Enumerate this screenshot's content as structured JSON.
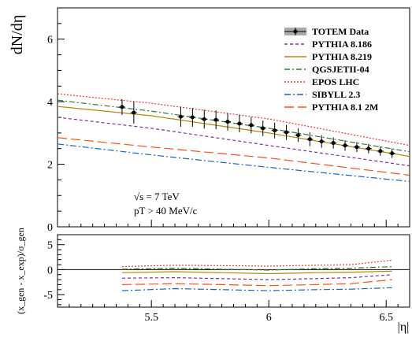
{
  "chart_data": {
    "type": "line",
    "x_range": [
      5.1,
      6.6
    ],
    "x_ticks": [
      "5.5",
      "6",
      "6.5"
    ],
    "xlabel": "|η|",
    "top_panel": {
      "ylabel": "dN/dη",
      "ylim": [
        0,
        7
      ],
      "y_ticks": [
        "0",
        "2",
        "4",
        "6"
      ],
      "annotations": [
        "√s = 7 TeV",
        "pT > 40 MeV/c"
      ],
      "legend_position": "top-right",
      "data_series": {
        "name": "TOTEM Data",
        "points": [
          {
            "x": 5.375,
            "y": 3.83,
            "err": 0.25
          },
          {
            "x": 5.425,
            "y": 3.65,
            "err": 0.35
          },
          {
            "x": 5.625,
            "y": 3.52,
            "err": 0.32
          },
          {
            "x": 5.675,
            "y": 3.5,
            "err": 0.3
          },
          {
            "x": 5.725,
            "y": 3.44,
            "err": 0.3
          },
          {
            "x": 5.775,
            "y": 3.42,
            "err": 0.3
          },
          {
            "x": 5.825,
            "y": 3.36,
            "err": 0.28
          },
          {
            "x": 5.875,
            "y": 3.3,
            "err": 0.28
          },
          {
            "x": 5.925,
            "y": 3.25,
            "err": 0.26
          },
          {
            "x": 5.975,
            "y": 3.15,
            "err": 0.25
          },
          {
            "x": 6.025,
            "y": 3.08,
            "err": 0.25
          },
          {
            "x": 6.075,
            "y": 3.02,
            "err": 0.24
          },
          {
            "x": 6.125,
            "y": 2.93,
            "err": 0.22
          },
          {
            "x": 6.175,
            "y": 2.8,
            "err": 0.22
          },
          {
            "x": 6.225,
            "y": 2.73,
            "err": 0.2
          },
          {
            "x": 6.275,
            "y": 2.68,
            "err": 0.18
          },
          {
            "x": 6.325,
            "y": 2.6,
            "err": 0.17
          },
          {
            "x": 6.375,
            "y": 2.55,
            "err": 0.16
          },
          {
            "x": 6.425,
            "y": 2.5,
            "err": 0.15
          },
          {
            "x": 6.475,
            "y": 2.42,
            "err": 0.15
          },
          {
            "x": 6.525,
            "y": 2.35,
            "err": 0.15
          }
        ]
      },
      "series": [
        {
          "name": "PYTHIA 8.186",
          "color": "#7b3294",
          "dash": "4,3",
          "x": [
            5.1,
            5.5,
            6.0,
            6.6
          ],
          "y": [
            3.5,
            3.15,
            2.6,
            1.95
          ]
        },
        {
          "name": "PYTHIA 8.219",
          "color": "#b8860b",
          "dash": "",
          "x": [
            5.1,
            5.5,
            6.0,
            6.6
          ],
          "y": [
            3.85,
            3.55,
            3.0,
            2.25
          ]
        },
        {
          "name": "QGSJETII-04",
          "color": "#2e7d32",
          "dash": "7,3,2,3",
          "x": [
            5.1,
            5.5,
            6.0,
            6.6
          ],
          "y": [
            4.05,
            3.7,
            3.15,
            2.4
          ]
        },
        {
          "name": "EPOS LHC",
          "color": "#e53935",
          "dash": "2,2",
          "x": [
            5.1,
            5.5,
            6.0,
            6.6
          ],
          "y": [
            4.25,
            3.95,
            3.45,
            2.6
          ]
        },
        {
          "name": "SIBYLL 2.3",
          "color": "#1565c0",
          "dash": "8,3,2,3",
          "x": [
            5.1,
            5.5,
            6.0,
            6.6
          ],
          "y": [
            2.65,
            2.3,
            1.9,
            1.45
          ]
        },
        {
          "name": "PYTHIA 8.1 2M",
          "color": "#f4511e",
          "dash": "12,5",
          "x": [
            5.1,
            5.5,
            6.0,
            6.6
          ],
          "y": [
            2.85,
            2.55,
            2.2,
            1.65
          ]
        }
      ]
    },
    "bottom_panel": {
      "ylabel": "(x_gen - x_exp)/σ_gen",
      "ylim": [
        -7.5,
        7
      ],
      "y_ticks": [
        "5",
        "0",
        "-5"
      ],
      "reference_line_y": 0,
      "series": [
        {
          "name": "EPOS LHC",
          "color": "#e53935",
          "dash": "2,2",
          "x": [
            5.375,
            5.6,
            5.8,
            6.0,
            6.2,
            6.35,
            6.525
          ],
          "y": [
            0.6,
            0.9,
            0.8,
            0.7,
            0.9,
            1.0,
            1.9
          ]
        },
        {
          "name": "QGSJETII-04",
          "color": "#2e7d32",
          "dash": "7,3,2,3",
          "x": [
            5.375,
            5.6,
            5.8,
            6.0,
            6.2,
            6.35,
            6.525
          ],
          "y": [
            0.1,
            0.3,
            0.1,
            -0.1,
            0.2,
            0.3,
            0.6
          ]
        },
        {
          "name": "PYTHIA 8.219",
          "color": "#b8860b",
          "dash": "",
          "x": [
            5.375,
            5.6,
            5.8,
            6.0,
            6.2,
            6.35,
            6.525
          ],
          "y": [
            -0.6,
            -0.4,
            -0.6,
            -0.8,
            -0.6,
            -0.5,
            -0.3
          ]
        },
        {
          "name": "PYTHIA 8.186",
          "color": "#7b3294",
          "dash": "4,3",
          "x": [
            5.375,
            5.6,
            5.8,
            6.0,
            6.2,
            6.35,
            6.525
          ],
          "y": [
            -1.7,
            -1.6,
            -1.8,
            -2.0,
            -1.8,
            -1.6,
            -1.0
          ]
        },
        {
          "name": "PYTHIA 8.1 2M",
          "color": "#f4511e",
          "dash": "12,5",
          "x": [
            5.375,
            5.6,
            5.8,
            6.0,
            6.2,
            6.35,
            6.525
          ],
          "y": [
            -3.0,
            -2.8,
            -3.0,
            -3.2,
            -3.0,
            -2.8,
            -2.0
          ]
        },
        {
          "name": "SIBYLL 2.3",
          "color": "#1565c0",
          "dash": "8,3,2,3",
          "x": [
            5.375,
            5.6,
            5.8,
            6.0,
            6.2,
            6.35,
            6.525
          ],
          "y": [
            -4.2,
            -3.8,
            -4.0,
            -4.2,
            -4.0,
            -3.9,
            -3.6
          ]
        }
      ]
    }
  }
}
